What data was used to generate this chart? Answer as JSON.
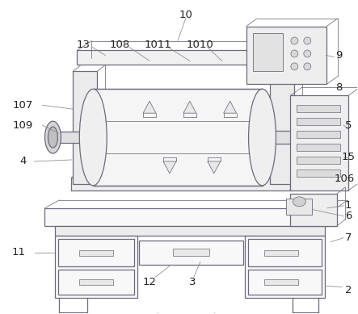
{
  "fig_width": 4.43,
  "fig_height": 3.89,
  "dpi": 100,
  "bg_color": "#ffffff",
  "lc": "#6b6b7b",
  "lw": 0.9,
  "tlw": 0.55
}
